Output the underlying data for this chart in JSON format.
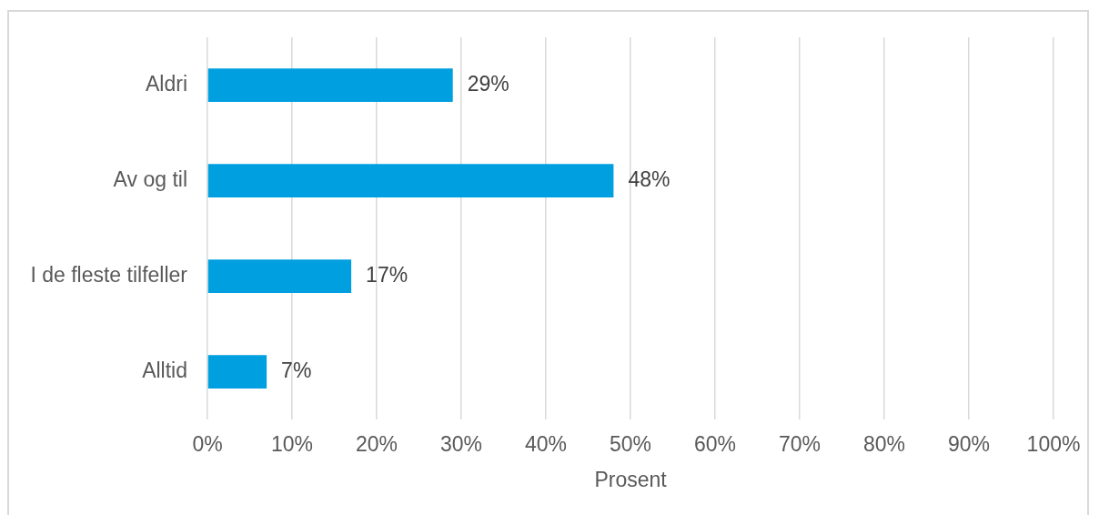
{
  "chart_data": {
    "type": "bar",
    "orientation": "horizontal",
    "categories": [
      "Aldri",
      "Av og til",
      "I de fleste tilfeller",
      "Alltid"
    ],
    "values": [
      29,
      48,
      17,
      7
    ],
    "color": "#009fdf",
    "value_labels": [
      "29%",
      "48%",
      "17%",
      "7%"
    ],
    "xlim": [
      0,
      100
    ],
    "xticks": [
      {
        "value": 0,
        "label": "0%"
      },
      {
        "value": 10,
        "label": "10%"
      },
      {
        "value": 20,
        "label": "20%"
      },
      {
        "value": 30,
        "label": "30%"
      },
      {
        "value": 40,
        "label": "40%"
      },
      {
        "value": 50,
        "label": "50%"
      },
      {
        "value": 60,
        "label": "60%"
      },
      {
        "value": 70,
        "label": "70%"
      },
      {
        "value": 80,
        "label": "80%"
      },
      {
        "value": 90,
        "label": "90%"
      },
      {
        "value": 100,
        "label": "100%"
      }
    ],
    "xlabel": "Prosent",
    "grid": "x"
  }
}
